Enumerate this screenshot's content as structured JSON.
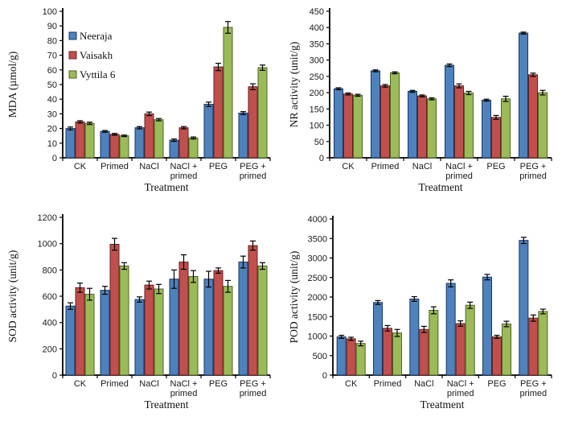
{
  "figure": {
    "background": "#ffffff",
    "axis_color": "#000000",
    "error_bar_color": "#000000",
    "legend": {
      "position": "upper-left-inside-first-chart",
      "items": [
        {
          "label": "Neeraja",
          "color": "#4f81bd",
          "border": "#17375e"
        },
        {
          "label": "Vaisakh",
          "color": "#c0504d",
          "border": "#632523"
        },
        {
          "label": "Vyttila 6",
          "color": "#9bbb59",
          "border": "#4f6228"
        }
      ]
    }
  },
  "chart_data": [
    {
      "type": "bar",
      "title": "",
      "ylabel": "MDA (µmol/g)",
      "xlabel": "Treatment",
      "ylim": [
        0,
        100
      ],
      "ytick_step": 10,
      "grid": false,
      "legend_visible": true,
      "categories": [
        "CK",
        "Primed",
        "NaCl",
        "NaCl +\nprimed",
        "PEG",
        "PEG +\nprimed"
      ],
      "series": [
        {
          "name": "Neeraja",
          "color": "#4f81bd",
          "border": "#17375e",
          "values": [
            20,
            18,
            20.5,
            12,
            36.5,
            30.5
          ],
          "errors": [
            1,
            0.6,
            0.8,
            0.8,
            1.5,
            1
          ]
        },
        {
          "name": "Vaisakh",
          "color": "#c0504d",
          "border": "#632523",
          "values": [
            24.5,
            16,
            30,
            20.5,
            62,
            48.5
          ],
          "errors": [
            0.8,
            0.6,
            1.2,
            0.8,
            2.5,
            2
          ]
        },
        {
          "name": "Vyttila 6",
          "color": "#9bbb59",
          "border": "#4f6228",
          "values": [
            23.5,
            15,
            26,
            13.5,
            89,
            61.5
          ],
          "errors": [
            0.8,
            0.5,
            0.8,
            0.7,
            4,
            1.8
          ]
        }
      ]
    },
    {
      "type": "bar",
      "title": "",
      "ylabel": "NR activity (unit/g)",
      "xlabel": "Treatment",
      "ylim": [
        0,
        450
      ],
      "ytick_step": 50,
      "grid": false,
      "legend_visible": false,
      "categories": [
        "CK",
        "Primed",
        "NaCl",
        "NaCl +\nprimed",
        "PEG",
        "PEG +\nprimed"
      ],
      "series": [
        {
          "name": "Neeraja",
          "color": "#4f81bd",
          "border": "#17375e",
          "values": [
            212,
            267,
            204,
            284,
            177,
            383
          ],
          "errors": [
            3,
            3,
            3,
            4,
            3,
            3
          ]
        },
        {
          "name": "Vaisakh",
          "color": "#c0504d",
          "border": "#632523",
          "values": [
            196,
            221,
            190,
            221,
            124,
            255
          ],
          "errors": [
            3,
            4,
            3,
            6,
            6,
            5
          ]
        },
        {
          "name": "Vyttila 6",
          "color": "#9bbb59",
          "border": "#4f6228",
          "values": [
            192,
            261,
            181,
            199,
            181,
            200
          ],
          "errors": [
            3,
            3,
            3,
            5,
            8,
            7
          ]
        }
      ]
    },
    {
      "type": "bar",
      "title": "",
      "ylabel": "SOD activity (unit/g)",
      "xlabel": "Treatment",
      "ylim": [
        0,
        1200
      ],
      "ytick_step": 200,
      "grid": false,
      "legend_visible": false,
      "categories": [
        "CK",
        "Primed",
        "NaCl",
        "NaCl +\nprimed",
        "PEG",
        "PEG +\nprimed"
      ],
      "series": [
        {
          "name": "Neeraja",
          "color": "#4f81bd",
          "border": "#17375e",
          "values": [
            525,
            645,
            575,
            730,
            730,
            860
          ],
          "errors": [
            25,
            30,
            20,
            70,
            60,
            45
          ]
        },
        {
          "name": "Vaisakh",
          "color": "#c0504d",
          "border": "#632523",
          "values": [
            665,
            995,
            685,
            860,
            795,
            985
          ],
          "errors": [
            35,
            45,
            30,
            55,
            20,
            35
          ]
        },
        {
          "name": "Vyttila 6",
          "color": "#9bbb59",
          "border": "#4f6228",
          "values": [
            615,
            830,
            655,
            750,
            675,
            830
          ],
          "errors": [
            45,
            25,
            35,
            45,
            45,
            25
          ]
        }
      ]
    },
    {
      "type": "bar",
      "title": "",
      "ylabel": "POD activity (unit/g)",
      "xlabel": "Treatment",
      "ylim": [
        0,
        4000
      ],
      "ytick_step": 500,
      "grid": false,
      "legend_visible": false,
      "categories": [
        "CK",
        "Primed",
        "NaCl",
        "NaCl +\nprimed",
        "PEG",
        "PEG +\nprimed"
      ],
      "series": [
        {
          "name": "Neeraja",
          "color": "#4f81bd",
          "border": "#17375e",
          "values": [
            980,
            1860,
            1950,
            2350,
            2510,
            3450
          ],
          "errors": [
            40,
            50,
            60,
            90,
            70,
            80
          ]
        },
        {
          "name": "Vaisakh",
          "color": "#c0504d",
          "border": "#632523",
          "values": [
            930,
            1200,
            1170,
            1320,
            980,
            1460
          ],
          "errors": [
            40,
            70,
            80,
            70,
            40,
            80
          ]
        },
        {
          "name": "Vyttila 6",
          "color": "#9bbb59",
          "border": "#4f6228",
          "values": [
            810,
            1080,
            1660,
            1790,
            1310,
            1630
          ],
          "errors": [
            60,
            90,
            90,
            80,
            70,
            60
          ]
        }
      ]
    }
  ]
}
